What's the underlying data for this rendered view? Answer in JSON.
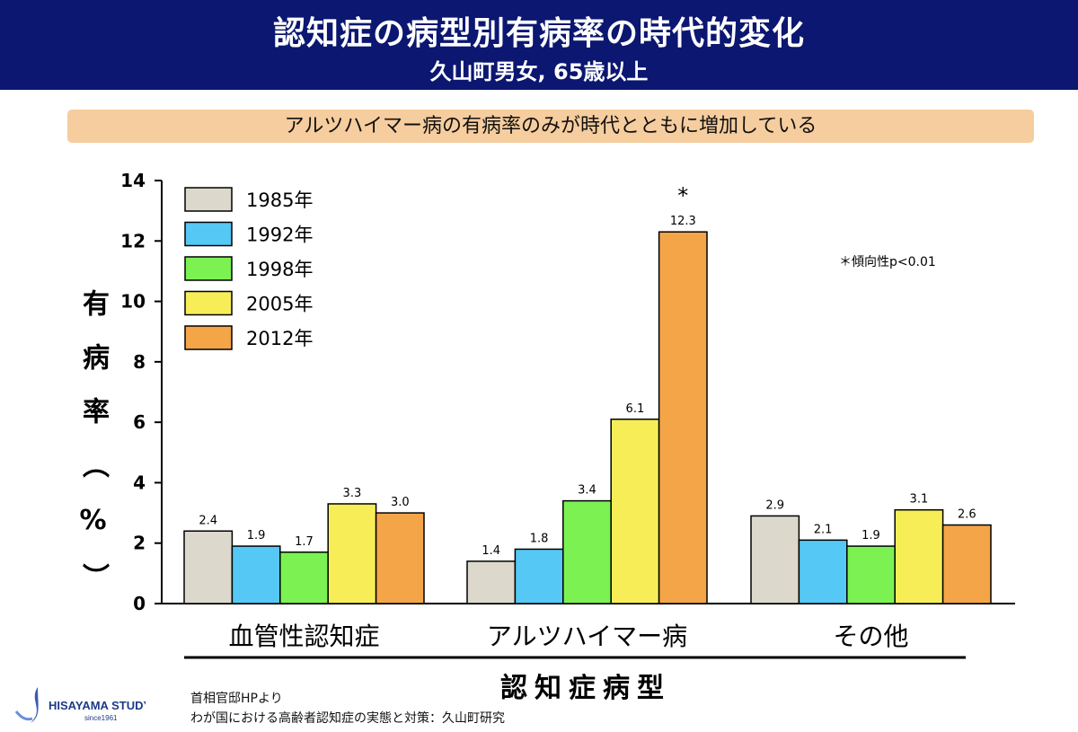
{
  "header": {
    "title": "認知症の病型別有病率の時代的変化",
    "subtitle": "久山町男女, 65歳以上"
  },
  "banner": "アルツハイマー病の有病率のみが時代とともに増加している",
  "chart_data": {
    "type": "bar",
    "ylabel": "有病率（%）",
    "xlabel": "認知症病型",
    "ylim": [
      0,
      14
    ],
    "yticks": [
      0,
      2,
      4,
      6,
      8,
      10,
      12,
      14
    ],
    "categories": [
      "血管性認知症",
      "アルツハイマー病",
      "その他"
    ],
    "legend_position": "top-left",
    "series": [
      {
        "name": "1985年",
        "color": "#dcd8cb",
        "values": [
          2.4,
          1.4,
          2.9
        ]
      },
      {
        "name": "1992年",
        "color": "#55c8f5",
        "values": [
          1.9,
          1.8,
          2.1
        ]
      },
      {
        "name": "1998年",
        "color": "#7cf252",
        "values": [
          1.7,
          3.4,
          1.9
        ]
      },
      {
        "name": "2005年",
        "color": "#f7ee57",
        "values": [
          3.3,
          6.1,
          3.1
        ]
      },
      {
        "name": "2012年",
        "color": "#f4a548",
        "values": [
          3.0,
          12.3,
          2.6
        ]
      }
    ],
    "annotations": [
      {
        "text": "*",
        "series": "2012年",
        "category": "アルツハイマー病"
      }
    ],
    "note": "＊傾向性p<0.01"
  },
  "source": {
    "line1": "首相官邸HPより",
    "line2": "わが国における高齢者認知症の実態と対策：久山町研究"
  },
  "logo": {
    "text": "HISAYAMA STUDY",
    "since": "since1961"
  }
}
